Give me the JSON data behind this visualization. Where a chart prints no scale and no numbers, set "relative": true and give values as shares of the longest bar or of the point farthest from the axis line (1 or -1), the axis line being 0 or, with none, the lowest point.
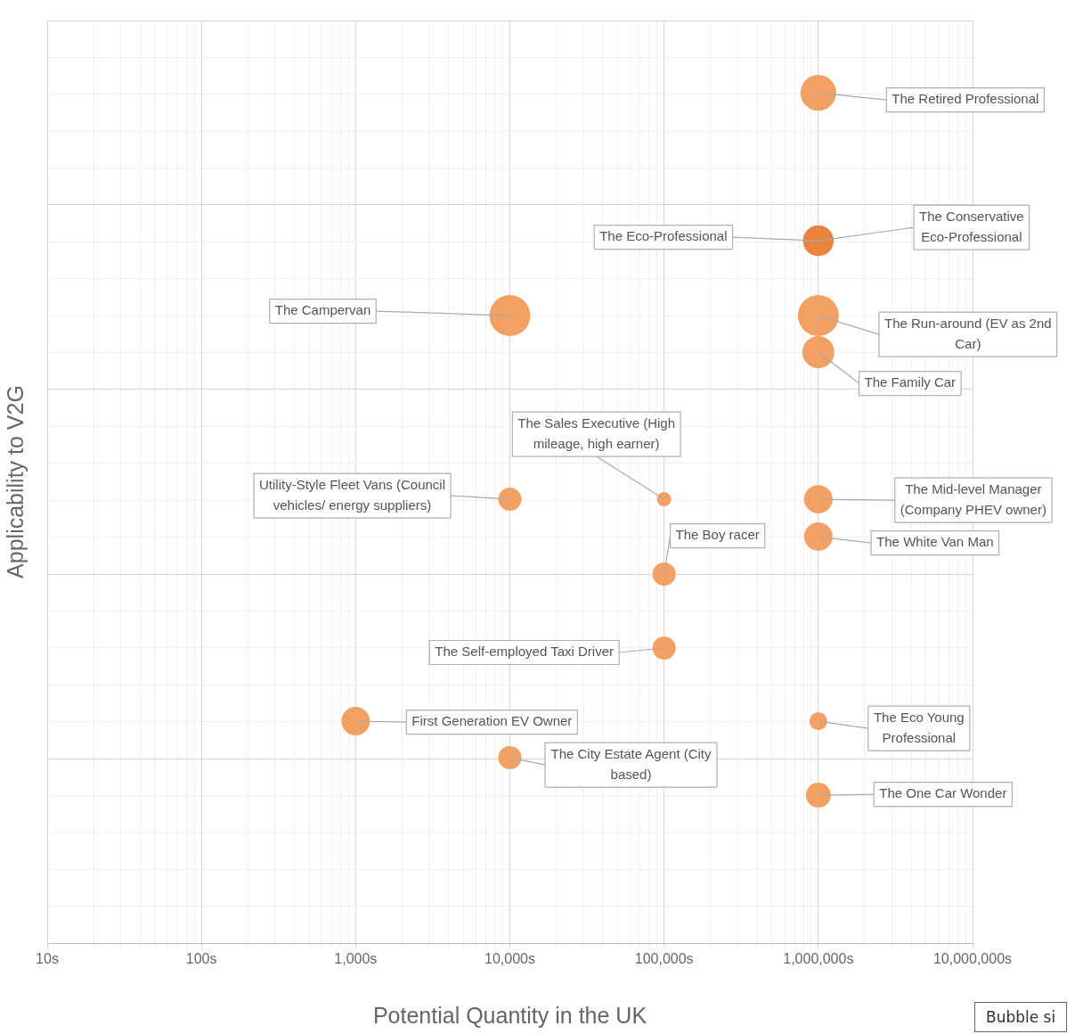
{
  "chart_data": {
    "type": "bubble",
    "relative": true,
    "xlabel": "Potential Quantity in the UK",
    "ylabel": "Applicability to V2G",
    "log": "x",
    "grid": true,
    "legend": false,
    "xlim": [
      10,
      10000000
    ],
    "xticks": [
      {
        "value": 10,
        "label": "10s"
      },
      {
        "value": 100,
        "label": "100s"
      },
      {
        "value": 1000,
        "label": "1,000s"
      },
      {
        "value": 10000,
        "label": "10,000s"
      },
      {
        "value": 100000,
        "label": "100,000s"
      },
      {
        "value": 1000000,
        "label": "1,000,000s"
      },
      {
        "value": 10000000,
        "label": "10,000,000s"
      }
    ],
    "x": [
      1000000,
      1000000,
      1000000,
      10000,
      1000000,
      1000000,
      100000,
      10000,
      1000000,
      1000000,
      100000,
      100000,
      1000,
      1000000,
      10000,
      1000000
    ],
    "values": [
      1,
      0.826,
      0.826,
      0.738,
      0.738,
      0.695,
      0.522,
      0.522,
      0.522,
      0.478,
      0.434,
      0.347,
      0.261,
      0.261,
      0.218,
      0.174
    ],
    "sizes": [
      0.76,
      0.55,
      0.55,
      1,
      1,
      0.61,
      0.12,
      0.32,
      0.48,
      0.48,
      0.32,
      0.32,
      0.48,
      0.19,
      0.32,
      0.37
    ],
    "colors": [
      "#f2a064",
      "#e8843e",
      "#e8843e",
      "#f2a064",
      "#f2a064",
      "#f2a064",
      "#f2a064",
      "#f2a064",
      "#f2a064",
      "#f2a064",
      "#f2a064",
      "#f2a064",
      "#f2a064",
      "#f2a064",
      "#f2a064",
      "#f2a064"
    ],
    "annotations": [
      {
        "text": "The Retired Professional",
        "x": 1000000,
        "y": 1
      },
      {
        "text": "The Eco-Professional",
        "x": 1000000,
        "y": 0.826
      },
      {
        "text": "The Conservative Eco-Professional",
        "x": 1000000,
        "y": 0.826
      },
      {
        "text": "The Campervan",
        "x": 10000,
        "y": 0.738
      },
      {
        "text": "The Run-around (EV as 2nd Car)",
        "x": 1000000,
        "y": 0.738
      },
      {
        "text": "The Family Car",
        "x": 1000000,
        "y": 0.695
      },
      {
        "text": "The Sales Executive (High mileage, high earner)",
        "x": 100000,
        "y": 0.522
      },
      {
        "text": "Utility-Style Fleet Vans (Council vehicles/ energy suppliers)",
        "x": 10000,
        "y": 0.522
      },
      {
        "text": "The Mid-level Manager (Company PHEV owner)",
        "x": 1000000,
        "y": 0.522
      },
      {
        "text": "The White Van Man",
        "x": 1000000,
        "y": 0.478
      },
      {
        "text": "The Boy racer",
        "x": 100000,
        "y": 0.434
      },
      {
        "text": "The Self-employed Taxi Driver",
        "x": 100000,
        "y": 0.347
      },
      {
        "text": "First Generation EV Owner",
        "x": 1000,
        "y": 0.261
      },
      {
        "text": "The Eco Young Professional",
        "x": 1000000,
        "y": 0.261
      },
      {
        "text": "The City Estate Agent (City based)",
        "x": 10000,
        "y": 0.218
      },
      {
        "text": "The One Car Wonder",
        "x": 1000000,
        "y": 0.174
      },
      "Bubble si"
    ]
  }
}
